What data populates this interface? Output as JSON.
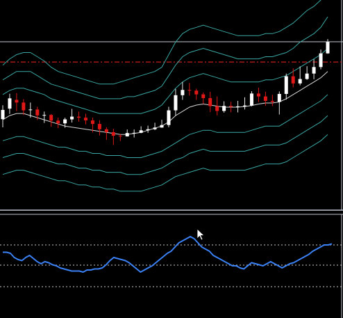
{
  "colors": {
    "background": "#000000",
    "frame": "#bfc6d0",
    "band": "#3aa8a4",
    "ma": "#d8d8d8",
    "bull": "#ffffff",
    "bear": "#e01818",
    "resistance": "#c81e1e",
    "oscillator": "#3b82f6",
    "osc_levels": "#d0d0d0"
  },
  "icons": {
    "cursor": "mouse-pointer-icon"
  },
  "chart_data": [
    {
      "type": "candlestick",
      "title": "",
      "xlabel": "",
      "ylabel": "",
      "ylim": [
        0,
        100
      ],
      "grid": false,
      "resistance_level": 70.5,
      "upper_reference_level": 83.6,
      "candles": [
        [
          43.3,
          47.7,
          39.4,
          49.9
        ],
        [
          48.3,
          53.2,
          45.8,
          55.4
        ],
        [
          52.5,
          51.2,
          47.1,
          55.7
        ],
        [
          51.2,
          47.5,
          45.3,
          52.8
        ],
        [
          47.7,
          47.9,
          44.0,
          51.2
        ],
        [
          47.9,
          45.1,
          42.9,
          49.2
        ],
        [
          45.1,
          45.3,
          41.5,
          46.9
        ],
        [
          45.3,
          42.6,
          39.7,
          45.7
        ],
        [
          42.6,
          41.3,
          39.0,
          44.0
        ],
        [
          41.3,
          43.2,
          39.2,
          44.0
        ],
        [
          43.2,
          44.5,
          41.7,
          48.2
        ],
        [
          44.5,
          44.0,
          42.1,
          46.9
        ],
        [
          44.0,
          42.7,
          40.8,
          45.9
        ],
        [
          42.7,
          41.0,
          37.0,
          44.0
        ],
        [
          41.0,
          38.5,
          35.5,
          42.8
        ],
        [
          38.5,
          37.1,
          33.5,
          39.4
        ],
        [
          37.1,
          35.4,
          31.0,
          38.7
        ],
        [
          35.4,
          35.1,
          32.9,
          36.3
        ],
        [
          35.1,
          36.7,
          35.0,
          38.4
        ],
        [
          36.7,
          36.8,
          34.6,
          38.4
        ],
        [
          36.8,
          38.0,
          36.6,
          39.9
        ],
        [
          38.0,
          38.5,
          36.8,
          40.2
        ],
        [
          38.5,
          39.3,
          38.1,
          41.6
        ],
        [
          39.3,
          40.5,
          39.2,
          43.0
        ],
        [
          40.5,
          47.5,
          39.4,
          49.2
        ],
        [
          47.5,
          54.7,
          44.9,
          57.7
        ],
        [
          54.7,
          57.2,
          52.5,
          61.0
        ],
        [
          57.2,
          56.9,
          54.5,
          60.5
        ],
        [
          56.9,
          55.1,
          52.5,
          57.8
        ],
        [
          55.1,
          53.3,
          50.5,
          56.0
        ],
        [
          53.3,
          49.5,
          46.7,
          56.3
        ],
        [
          49.5,
          47.2,
          45.1,
          54.1
        ],
        [
          47.2,
          49.6,
          46.4,
          51.8
        ],
        [
          49.6,
          49.2,
          46.6,
          51.6
        ],
        [
          49.2,
          49.4,
          46.5,
          52.0
        ],
        [
          49.4,
          49.8,
          47.9,
          53.7
        ],
        [
          49.8,
          55.5,
          49.4,
          56.6
        ],
        [
          55.5,
          54.1,
          51.4,
          58.3
        ],
        [
          54.1,
          52.0,
          49.6,
          56.4
        ],
        [
          52.0,
          51.5,
          49.5,
          54.9
        ],
        [
          51.5,
          55.3,
          45.5,
          56.5
        ],
        [
          55.3,
          63.7,
          52.6,
          65.0
        ],
        [
          63.7,
          60.3,
          58.4,
          67.5
        ],
        [
          60.3,
          62.4,
          59.4,
          68.4
        ],
        [
          62.4,
          65.0,
          62.0,
          68.5
        ],
        [
          65.0,
          68.1,
          62.3,
          71.8
        ],
        [
          68.1,
          74.6,
          67.0,
          76.4
        ],
        [
          74.6,
          80.0,
          74.4,
          81.4
        ]
      ],
      "bands": {
        "ma": [
          43,
          45,
          46,
          46,
          45,
          44,
          43,
          42,
          41,
          40,
          39.5,
          39,
          38.5,
          38,
          37.5,
          37,
          36.5,
          36,
          36,
          36.5,
          37,
          38,
          39,
          40,
          42,
          45,
          47,
          49,
          50,
          50.5,
          50,
          49.5,
          49,
          49,
          49,
          49.3,
          49.8,
          50.5,
          51,
          51,
          51.5,
          53,
          55,
          57,
          59,
          61,
          63,
          66
        ],
        "inner_upper": [
          55,
          57,
          58,
          58,
          57,
          56,
          55,
          53,
          52,
          51,
          50,
          49,
          48,
          47,
          46,
          46,
          46,
          46,
          46,
          46,
          46,
          47,
          48,
          50,
          54,
          58,
          61,
          63,
          64,
          65,
          64,
          63,
          62,
          61,
          61,
          61,
          61,
          61,
          62,
          62,
          63,
          64,
          66,
          68,
          70,
          72,
          74,
          77
        ],
        "inner_lower": [
          33,
          34,
          35,
          35,
          34,
          33,
          32,
          31,
          30,
          30,
          29,
          28,
          28,
          27,
          27,
          26,
          26,
          26,
          25,
          25,
          25,
          26,
          27,
          28,
          30,
          32,
          34,
          36,
          37,
          38,
          38,
          37,
          37,
          37,
          37,
          37,
          38,
          39,
          40,
          40,
          40,
          42,
          44,
          46,
          48,
          50,
          52,
          55
        ],
        "mid_upper": [
          62,
          64,
          66,
          66,
          66,
          64,
          62,
          60,
          59,
          58,
          57,
          56,
          55,
          54,
          53,
          53,
          53,
          53,
          54,
          54,
          55,
          56,
          57,
          59,
          64,
          69,
          73,
          75,
          76,
          77,
          76,
          75,
          74,
          73,
          72,
          72,
          72,
          72,
          73,
          73,
          74,
          75,
          77,
          80,
          82,
          84,
          87,
          92
        ],
        "mid_lower": [
          25,
          26,
          27,
          27,
          26,
          25,
          24,
          23,
          22,
          22,
          21,
          20,
          20,
          19,
          19,
          18,
          18,
          18,
          17,
          17,
          17,
          18,
          19,
          20,
          22,
          24,
          25,
          27,
          28,
          29,
          28,
          28,
          28,
          28,
          28,
          28,
          29,
          30,
          31,
          31,
          31,
          32,
          34,
          36,
          38,
          40,
          42,
          45
        ],
        "outer_upper": [
          69,
          72,
          74,
          75,
          75,
          73,
          71,
          68,
          66,
          65,
          64,
          63,
          62,
          61,
          60,
          60,
          60,
          61,
          62,
          63,
          64,
          65,
          66,
          68,
          74,
          80,
          84,
          86,
          87,
          88,
          87,
          86,
          85,
          84,
          83,
          83,
          83,
          83,
          84,
          84,
          85,
          87,
          89,
          92,
          95,
          97,
          100,
          104
        ],
        "outer_lower": [
          17,
          18,
          19,
          19,
          18,
          17,
          16,
          15,
          14,
          14,
          13,
          12,
          12,
          11,
          11,
          10,
          10,
          9,
          9,
          9,
          9,
          10,
          11,
          12,
          14,
          16,
          17,
          18,
          19,
          20,
          19,
          19,
          19,
          19,
          19,
          19,
          20,
          21,
          22,
          22,
          22,
          23,
          25,
          27,
          29,
          31,
          33,
          36
        ]
      }
    },
    {
      "type": "line",
      "title": "",
      "xlabel": "",
      "ylabel": "",
      "ylim": [
        0,
        100
      ],
      "levels": [
        70,
        30,
        50
      ],
      "series": [
        {
          "values": [
            63,
            63,
            62,
            58,
            56,
            55,
            58,
            60,
            57,
            54,
            52,
            54,
            53,
            51,
            50,
            48,
            47,
            46,
            45,
            45,
            45,
            44,
            46,
            46,
            47,
            47,
            48,
            51,
            55,
            58,
            57,
            56,
            55,
            53,
            50,
            47,
            44,
            46,
            48,
            50,
            53,
            56,
            59,
            62,
            64,
            68,
            72,
            74,
            76,
            78,
            76,
            72,
            68,
            66,
            64,
            60,
            58,
            56,
            54,
            52,
            50,
            50,
            48,
            47,
            50,
            53,
            52,
            51,
            50,
            52,
            54,
            52,
            50,
            48,
            50,
            52,
            53,
            55,
            57,
            59,
            61,
            64,
            66,
            68,
            70,
            70,
            71
          ]
        }
      ]
    }
  ]
}
